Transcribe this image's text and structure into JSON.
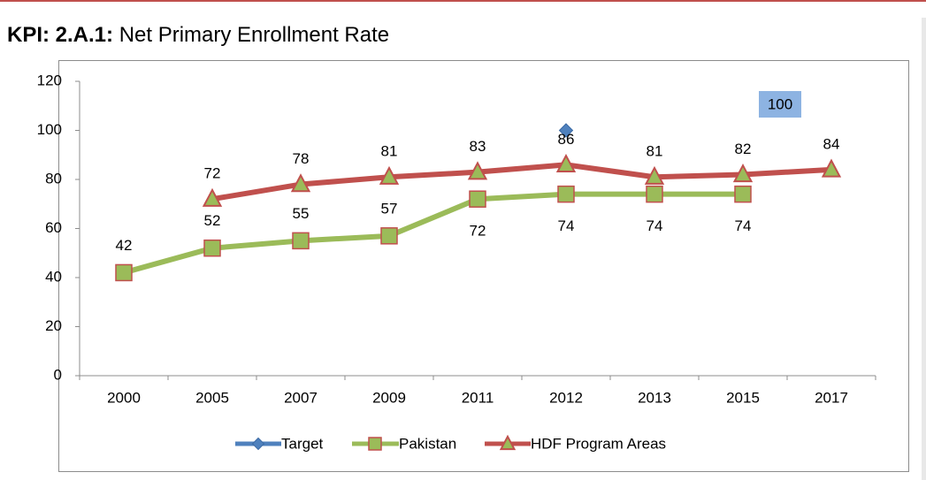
{
  "title": {
    "prefix": "KPI: 2.A.1:",
    "text": "Net Primary Enrollment Rate"
  },
  "colors": {
    "target": "#4f81bd",
    "pakistan": "#9bbb59",
    "pakistan_marker_edge": "#c0504d",
    "hdf": "#c0504d",
    "hdf_marker_fill": "#9bbb59",
    "callout_bg": "#8db3e2",
    "frame": "#8c8c8c"
  },
  "chart_data": {
    "type": "line",
    "categories": [
      "2000",
      "2005",
      "2007",
      "2009",
      "2011",
      "2012",
      "2013",
      "2015",
      "2017"
    ],
    "ylim": [
      0,
      120
    ],
    "yticks": [
      "0",
      "20",
      "40",
      "60",
      "80",
      "100",
      "120"
    ],
    "grid": false,
    "legend_position": "bottom",
    "series": [
      {
        "name": "Target",
        "marker": "diamond",
        "values": [
          null,
          null,
          null,
          null,
          null,
          100,
          null,
          null,
          null
        ],
        "labels": [
          null,
          null,
          null,
          null,
          null,
          null,
          null,
          null,
          null
        ]
      },
      {
        "name": "Pakistan",
        "marker": "square",
        "values": [
          42,
          52,
          55,
          57,
          72,
          74,
          74,
          74,
          null
        ],
        "labels": [
          "42",
          "52",
          "55",
          "57",
          "72",
          "74",
          "74",
          "74",
          null
        ]
      },
      {
        "name": "HDF Program Areas",
        "marker": "triangle",
        "values": [
          null,
          72,
          78,
          81,
          83,
          86,
          81,
          82,
          84
        ],
        "labels": [
          null,
          "72",
          "78",
          "81",
          "83",
          "86",
          "81",
          "82",
          "84"
        ]
      }
    ],
    "annotations": [
      {
        "text": "100"
      }
    ]
  }
}
